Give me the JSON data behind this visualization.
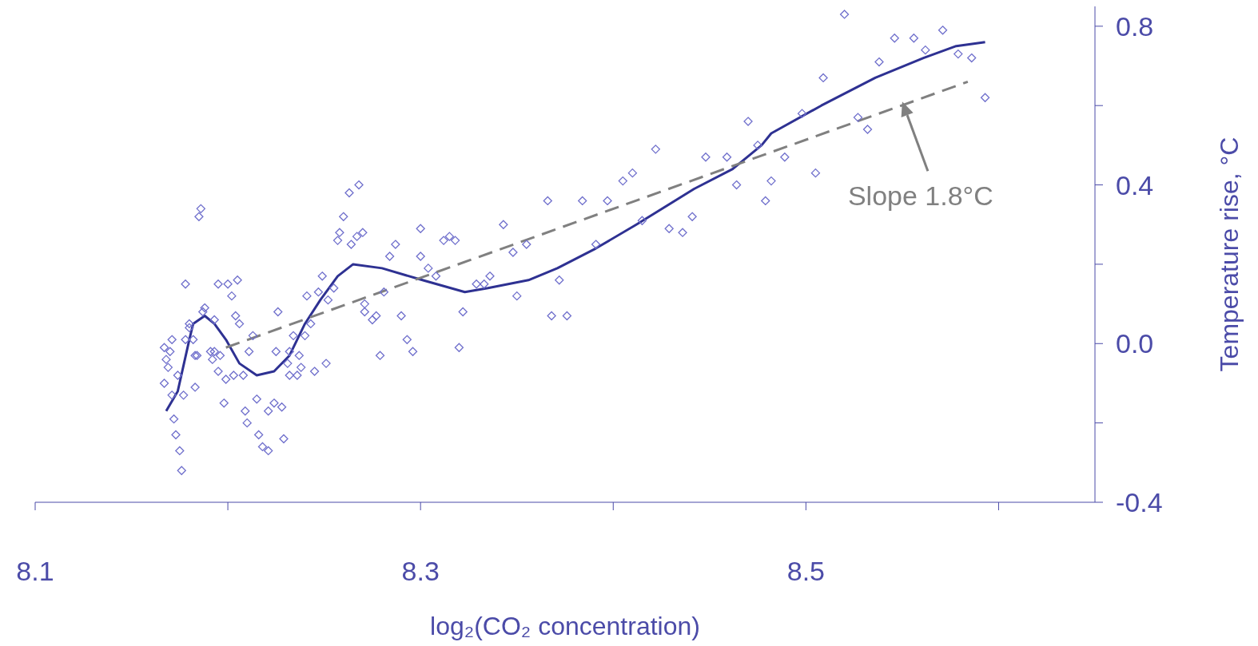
{
  "chart_data": {
    "type": "scatter",
    "xlabel": "log₂(CO₂ concentration)",
    "ylabel": "Temperature rise, °C",
    "xlim": [
      8.1,
      8.65
    ],
    "ylim": [
      -0.4,
      0.85
    ],
    "xticks": [
      8.1,
      {
        "value": 8.2,
        "label": null
      },
      8.3,
      {
        "value": 8.4,
        "label": null
      },
      8.5,
      {
        "value": 8.6,
        "label": null
      }
    ],
    "yticks": [
      -0.4,
      {
        "value": -0.2,
        "label": null
      },
      {
        "value": 0,
        "label": "0.0"
      },
      {
        "value": 0.2,
        "label": null
      },
      0.4,
      {
        "value": 0.6,
        "label": null
      },
      0.8
    ],
    "annotations": [
      {
        "text": "Slope 1.8°C",
        "x": 8.55,
        "y": 0.61
      }
    ],
    "series": [
      {
        "type": "scatter",
        "marker": "diamond",
        "color": "#6f6fcc",
        "x": [
          8.186,
          8.185,
          8.178,
          8.195,
          8.2,
          8.205,
          8.202,
          8.188,
          8.187,
          8.18,
          8.18,
          8.204,
          8.206,
          8.193,
          8.213,
          8.226,
          8.171,
          8.167,
          8.17,
          8.178,
          8.182,
          8.168,
          8.169,
          8.174,
          8.167,
          8.183,
          8.184,
          8.191,
          8.193,
          8.196,
          8.192,
          8.211,
          8.225,
          8.195,
          8.199,
          8.203,
          8.208,
          8.177,
          8.171,
          8.183,
          8.198,
          8.172,
          8.173,
          8.175,
          8.176,
          8.209,
          8.21,
          8.215,
          8.224,
          8.221,
          8.228,
          8.216,
          8.218,
          8.221,
          8.229,
          8.232,
          8.234,
          8.231,
          8.232,
          8.236,
          8.238,
          8.237,
          8.268,
          8.263,
          8.26,
          8.258,
          8.257,
          8.267,
          8.27,
          8.264,
          8.249,
          8.241,
          8.247,
          8.255,
          8.252,
          8.24,
          8.243,
          8.251,
          8.245,
          8.271,
          8.271,
          8.277,
          8.275,
          8.281,
          8.287,
          8.284,
          8.279,
          8.29,
          8.293,
          8.296,
          8.3,
          8.3,
          8.304,
          8.308,
          8.312,
          8.315,
          8.318,
          8.322,
          8.32,
          8.329,
          8.333,
          8.336,
          8.343,
          8.348,
          8.355,
          8.35,
          8.366,
          8.384,
          8.397,
          8.405,
          8.41,
          8.422,
          8.415,
          8.391,
          8.372,
          8.368,
          8.376,
          8.429,
          8.436,
          8.441,
          8.448,
          8.459,
          8.464,
          8.47,
          8.475,
          8.482,
          8.479,
          8.489,
          8.498,
          8.505,
          8.509,
          8.52,
          8.527,
          8.532,
          8.538,
          8.546,
          8.556,
          8.562,
          8.571,
          8.579,
          8.586,
          8.593
        ],
        "values": [
          0.34,
          0.32,
          0.15,
          0.15,
          0.15,
          0.16,
          0.12,
          0.09,
          0.08,
          0.05,
          0.04,
          0.07,
          0.05,
          0.06,
          0.02,
          0.08,
          0.01,
          -0.01,
          -0.02,
          0.01,
          0.01,
          -0.04,
          -0.06,
          -0.08,
          -0.1,
          -0.03,
          -0.03,
          -0.02,
          -0.02,
          -0.03,
          -0.04,
          -0.02,
          -0.02,
          -0.07,
          -0.09,
          -0.08,
          -0.08,
          -0.13,
          -0.13,
          -0.11,
          -0.15,
          -0.19,
          -0.23,
          -0.27,
          -0.32,
          -0.17,
          -0.2,
          -0.14,
          -0.15,
          -0.17,
          -0.16,
          -0.23,
          -0.26,
          -0.27,
          -0.24,
          -0.02,
          0.02,
          -0.05,
          -0.08,
          -0.08,
          -0.06,
          -0.03,
          0.4,
          0.38,
          0.32,
          0.28,
          0.26,
          0.27,
          0.28,
          0.25,
          0.17,
          0.12,
          0.13,
          0.14,
          0.11,
          0.02,
          0.05,
          -0.05,
          -0.07,
          0.1,
          0.08,
          0.07,
          0.06,
          0.13,
          0.25,
          0.22,
          -0.03,
          0.07,
          0.01,
          -0.02,
          0.29,
          0.22,
          0.19,
          0.17,
          0.26,
          0.27,
          0.26,
          0.08,
          -0.01,
          0.15,
          0.15,
          0.17,
          0.3,
          0.23,
          0.25,
          0.12,
          0.36,
          0.36,
          0.36,
          0.41,
          0.43,
          0.49,
          0.31,
          0.25,
          0.16,
          0.07,
          0.07,
          0.29,
          0.28,
          0.32,
          0.47,
          0.47,
          0.4,
          0.56,
          0.5,
          0.41,
          0.36,
          0.47,
          0.58,
          0.43,
          0.67,
          0.83,
          0.57,
          0.54,
          0.71,
          0.77,
          0.77,
          0.74,
          0.79,
          0.73,
          0.72,
          0.62
        ]
      },
      {
        "type": "line",
        "marker": "none",
        "color": "#2e3192",
        "x": [
          8.168,
          8.174,
          8.18,
          8.182,
          8.188,
          8.193,
          8.199,
          8.206,
          8.215,
          8.224,
          8.232,
          8.24,
          8.248,
          8.257,
          8.265,
          8.28,
          8.301,
          8.323,
          8.335,
          8.356,
          8.371,
          8.391,
          8.412,
          8.442,
          8.462,
          8.477,
          8.482,
          8.508,
          8.536,
          8.561,
          8.578,
          8.593
        ],
        "values": [
          -0.17,
          -0.12,
          0.01,
          0.05,
          0.07,
          0.05,
          0.01,
          -0.05,
          -0.08,
          -0.07,
          -0.03,
          0.05,
          0.11,
          0.17,
          0.2,
          0.19,
          0.16,
          0.13,
          0.14,
          0.16,
          0.19,
          0.24,
          0.3,
          0.39,
          0.44,
          0.5,
          0.53,
          0.6,
          0.67,
          0.72,
          0.75,
          0.76
        ]
      },
      {
        "type": "line",
        "marker": "none",
        "line_style": "dashed",
        "color": "#808080",
        "x": [
          8.199,
          8.584
        ],
        "values": [
          -0.01,
          0.66
        ]
      }
    ]
  }
}
